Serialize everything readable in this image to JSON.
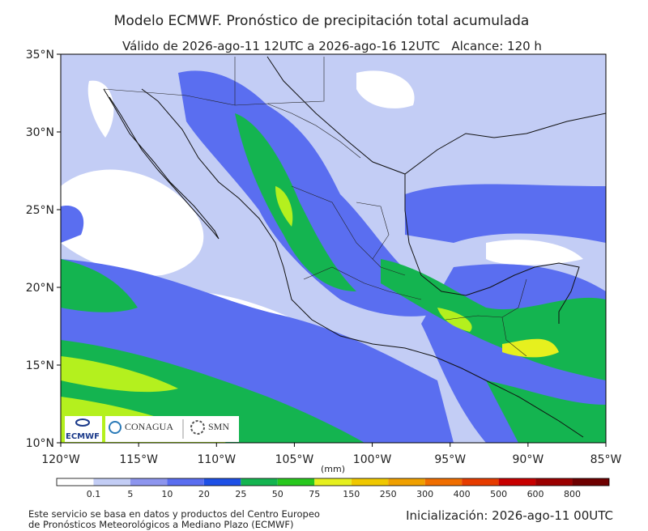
{
  "header": {
    "title": "Modelo ECMWF. Pronóstico de precipitación total acumulada",
    "subtitle": "Válido de 2026-ago-11 12UTC a 2026-ago-16 12UTC   Alcance: 120 h"
  },
  "map": {
    "lat_labels": [
      "35°N",
      "30°N",
      "25°N",
      "20°N",
      "15°N",
      "10°N"
    ],
    "lon_labels": [
      "120°W",
      "115°W",
      "110°W",
      "105°W",
      "100°W",
      "95°W",
      "90°W",
      "85°W"
    ]
  },
  "colorbar": {
    "unit": "(mm)",
    "levels": [
      0.1,
      5,
      10,
      20,
      25,
      50,
      75,
      150,
      250,
      300,
      400,
      500,
      600,
      800
    ],
    "colors": [
      "#ffffff",
      "#c3cdf5",
      "#8d95ee",
      "#5a6ef0",
      "#1e50e6",
      "#14b450",
      "#28c81e",
      "#e6f01e",
      "#f0c800",
      "#f0a000",
      "#f06e00",
      "#e63c00",
      "#c80000",
      "#9b0000",
      "#6e0000"
    ]
  },
  "logos": {
    "ecmwf": "ECMWF",
    "conagua": "CONAGUA",
    "smn": "SMN"
  },
  "footer": {
    "source_lines": [
      "Este servicio se basa en datos y productos del Centro Europeo",
      "de Pronósticos Meteorológicos a Mediano Plazo (ECMWF)"
    ],
    "init": "Inicialización: 2026-ago-11 00UTC"
  }
}
